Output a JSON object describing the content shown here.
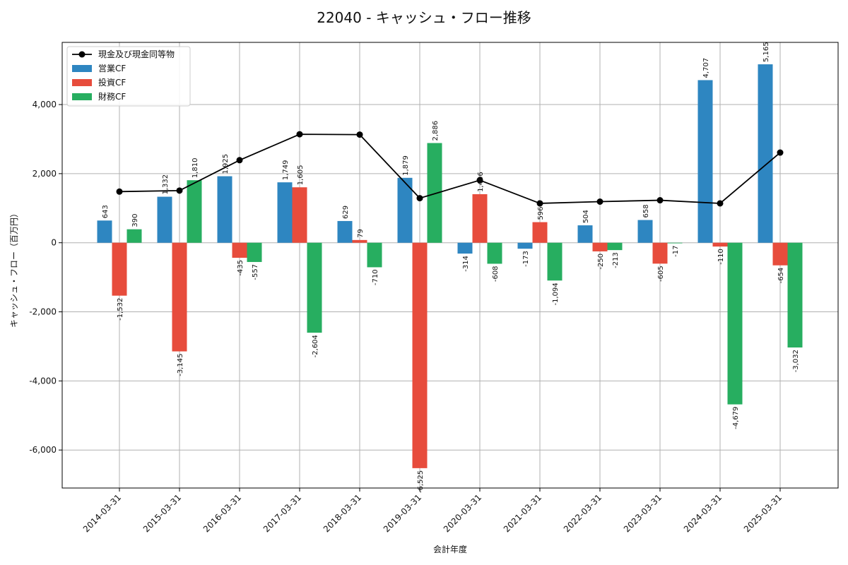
{
  "chart_data": {
    "type": "bar",
    "title": "22040 - キャッシュ・フロー推移",
    "xlabel": "会計年度",
    "ylabel": "キャッシュ・フロー（百万円）",
    "ylim": [
      -7100,
      5800
    ],
    "yticks": [
      -6000,
      -4000,
      -2000,
      0,
      2000,
      4000
    ],
    "grid": true,
    "legend_position": "top-left",
    "categories": [
      "2014-03-31",
      "2015-03-31",
      "2016-03-31",
      "2017-03-31",
      "2018-03-31",
      "2019-03-31",
      "2020-03-31",
      "2021-03-31",
      "2022-03-31",
      "2023-03-31",
      "2024-03-31",
      "2025-03-31"
    ],
    "series": [
      {
        "name": "営業CF",
        "type": "bar",
        "color": "#2e86c1",
        "values": [
          643,
          1332,
          1925,
          1749,
          629,
          1879,
          -314,
          -173,
          504,
          658,
          4707,
          5165
        ],
        "labels": [
          "643",
          "1,332",
          "1,925",
          "1,749",
          "629",
          "1,879",
          "-314",
          "-173",
          "504",
          "658",
          "4,707",
          "5,165"
        ]
      },
      {
        "name": "投資CF",
        "type": "bar",
        "color": "#e74c3c",
        "values": [
          -1532,
          -3145,
          -435,
          1605,
          79,
          -6525,
          1406,
          596,
          -250,
          -605,
          -110,
          -654
        ],
        "labels": [
          "-1,532",
          "-3,145",
          "-435",
          "1,605",
          "79",
          "-6,525",
          "1,406",
          "596",
          "-250",
          "-605",
          "-110",
          "-654"
        ]
      },
      {
        "name": "財務CF",
        "type": "bar",
        "color": "#27ae60",
        "values": [
          390,
          1810,
          -557,
          -2604,
          -710,
          2886,
          -608,
          -1094,
          -213,
          -17,
          -4679,
          -3032
        ],
        "labels": [
          "390",
          "1,810",
          "-557",
          "-2,604",
          "-710",
          "2,886",
          "-608",
          "-1,094",
          "-213",
          "-17",
          "-4,679",
          "-3,032"
        ]
      },
      {
        "name": "現金及び現金同等物",
        "type": "line",
        "color": "#000000",
        "values": [
          1480,
          1510,
          2390,
          3140,
          3130,
          1290,
          1810,
          1140,
          1190,
          1230,
          1140,
          2610
        ]
      }
    ]
  }
}
